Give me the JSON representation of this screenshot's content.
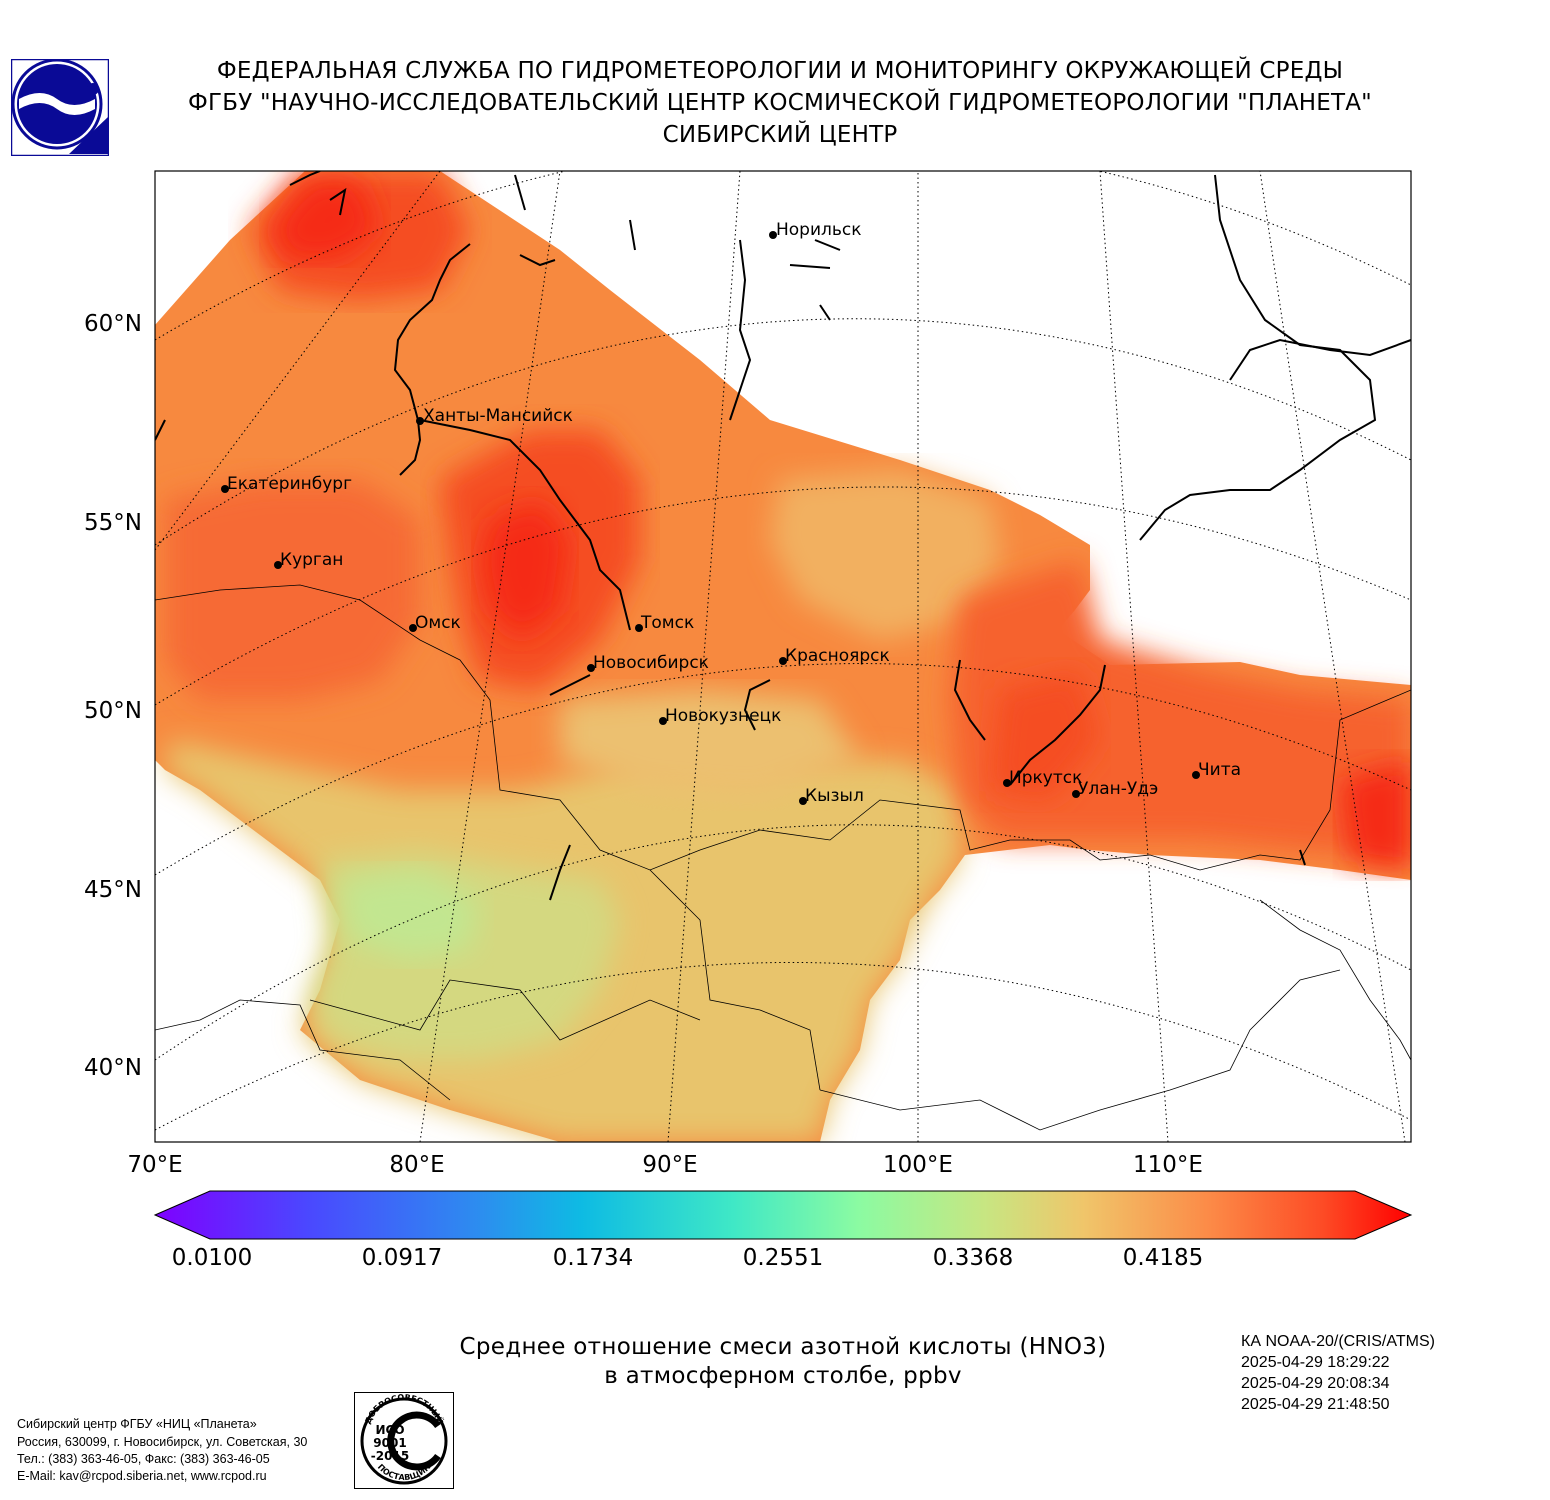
{
  "header": {
    "line1": "ФЕДЕРАЛЬНАЯ СЛУЖБА ПО ГИДРОМЕТЕОРОЛОГИИ И МОНИТОРИНГУ ОКРУЖАЮЩЕЙ СРЕДЫ",
    "line2": "ФГБУ \"НАУЧНО-ИССЛЕДОВАТЕЛЬСКИЙ ЦЕНТР КОСМИЧЕСКОЙ ГИДРОМЕТЕОРОЛОГИИ \"ПЛАНЕТА\"",
    "line3": "СИБИРСКИЙ ЦЕНТР"
  },
  "map": {
    "lat_labels": [
      "60°N",
      "55°N",
      "50°N",
      "45°N",
      "40°N"
    ],
    "lon_labels": [
      "70°E",
      "80°E",
      "90°E",
      "100°E",
      "110°E"
    ],
    "cities": [
      {
        "name": "Норильск"
      },
      {
        "name": "Ханты-Мансийск"
      },
      {
        "name": "Екатеринбург"
      },
      {
        "name": "Курган"
      },
      {
        "name": "Омск"
      },
      {
        "name": "Томск"
      },
      {
        "name": "Новосибирск"
      },
      {
        "name": "Красноярск"
      },
      {
        "name": "Новокузнецк"
      },
      {
        "name": "Кызыл"
      },
      {
        "name": "Иркутск"
      },
      {
        "name": "Улан-Удэ"
      },
      {
        "name": "Чита"
      }
    ]
  },
  "colorbar": {
    "ticks": [
      "0.0100",
      "0.0917",
      "0.1734",
      "0.2551",
      "0.3368",
      "0.4185"
    ],
    "min": 0.01,
    "max": 0.5
  },
  "title": {
    "line1": "Среднее отношение смеси азотной кислоты (HNO3)",
    "line2": "в атмосферном столбе, ppbv"
  },
  "info": {
    "satellite": "КА NOAA-20/(CRIS/ATMS)",
    "time1": "2025-04-29 18:29:22",
    "time2": "2025-04-29 20:08:34",
    "time3": "2025-04-29 21:48:50"
  },
  "footer": {
    "line1": "Сибирский центр ФГБУ «НИЦ «Планета»",
    "line2": "Россия, 630099, г. Новосибирск, ул. Советская, 30",
    "line3": "Тел.: (383) 363-46-05, Факс: (383) 363-46-05",
    "line4": "E-Mail: kav@rcpod.siberia.net, www.rcpod.ru"
  },
  "stamp": {
    "top_text": "ДОБРОСОВЕСТНЫЙ",
    "line1": "ИСО",
    "line2": "9001",
    "line3": "-2015",
    "bottom_text": "ПОСТАВЩИК"
  },
  "colors": {
    "dark_red": "#f52a12",
    "red": "#f54d22",
    "orange": "#f7893f",
    "light_orange": "#f5a95c",
    "yellow": "#e8c46c",
    "yellow_green": "#d8d87c",
    "light_green": "#c2e690",
    "logo_blue": "#0a0a96"
  }
}
